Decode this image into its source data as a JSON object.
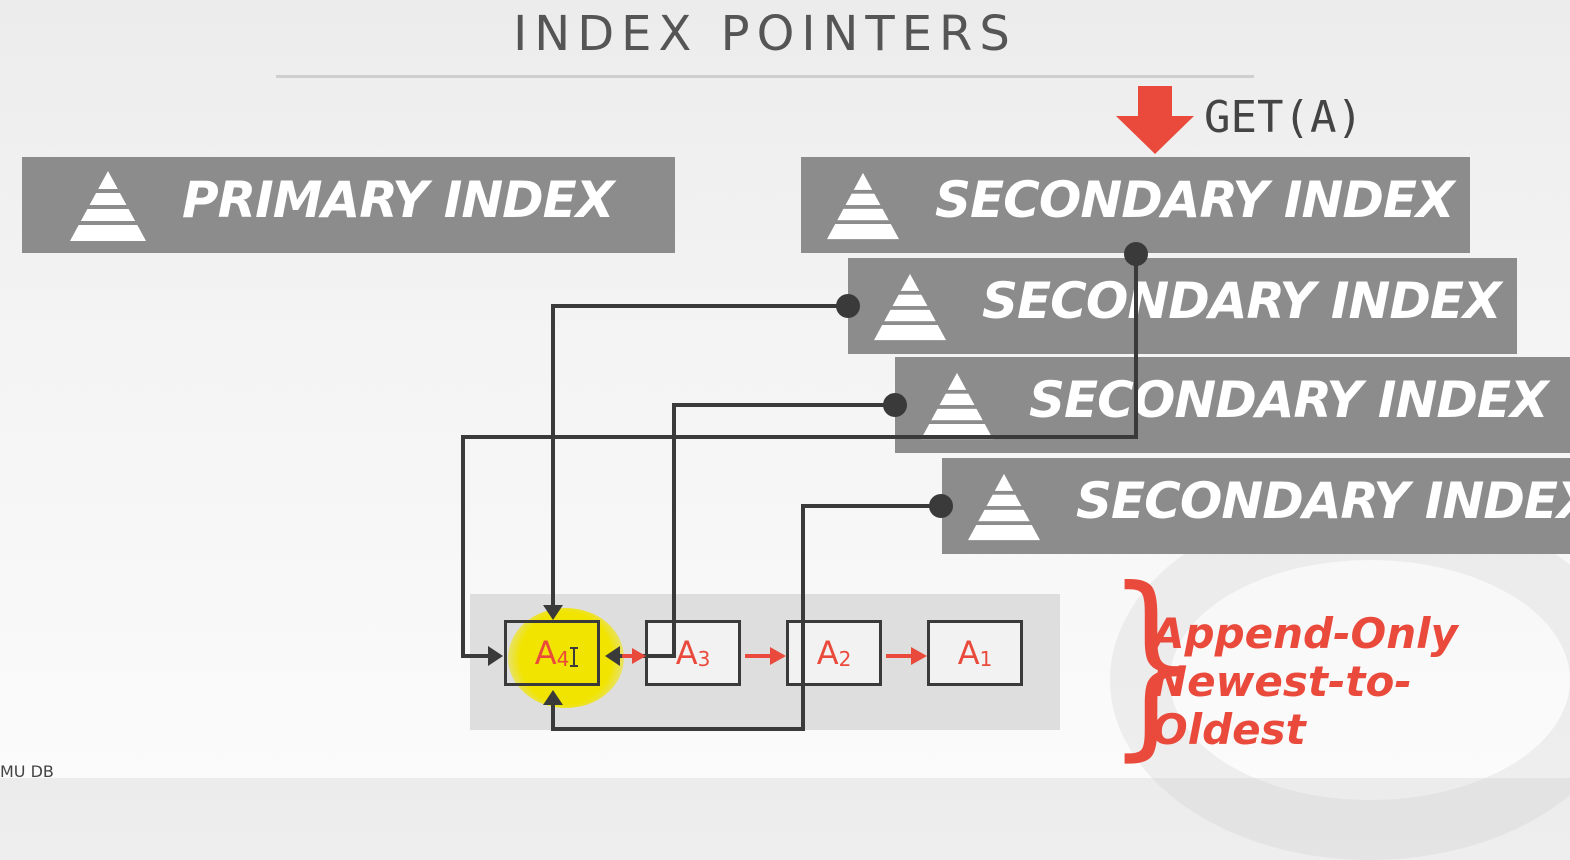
{
  "title": "INDEX POINTERS",
  "get": "GET(A)",
  "primary": "PRIMARY INDEX",
  "secondary": [
    "SECONDARY INDEX",
    "SECONDARY INDEX",
    "SECONDARY INDEX",
    "SECONDARY INDEX"
  ],
  "versions": [
    {
      "letter": "A",
      "sub": "4"
    },
    {
      "letter": "A",
      "sub": "3"
    },
    {
      "letter": "A",
      "sub": "2"
    },
    {
      "letter": "A",
      "sub": "1"
    }
  ],
  "note": [
    "Append-Only",
    "Newest-to-",
    "Oldest"
  ],
  "footer": "MU DB",
  "colors": {
    "accent": "#ea4a3c",
    "index": "#8c8c8c",
    "highlight": "#f1e400",
    "wire": "#3a3a3a"
  }
}
